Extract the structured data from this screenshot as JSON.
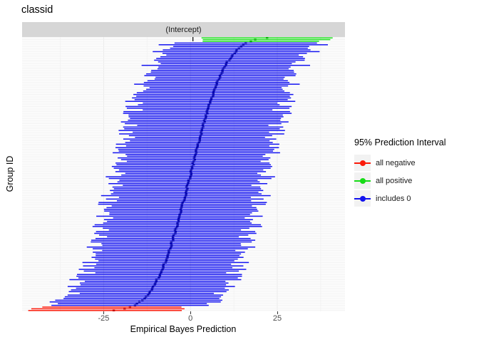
{
  "title": "classid",
  "facet_strip": "(Intercept)",
  "x_axis": {
    "label": "Empirical Bayes Prediction",
    "ticks": [
      "-25",
      "0",
      "25"
    ],
    "tick_values": [
      -25,
      0,
      25
    ]
  },
  "y_axis": {
    "label": "Group ID"
  },
  "legend": {
    "title": "95% Prediction Interval",
    "items": [
      {
        "label": "all negative",
        "color": "#fa1a0a",
        "dot_color": "#c40000"
      },
      {
        "label": "all positive",
        "color": "#17dc17",
        "dot_color": "#00b400"
      },
      {
        "label": "includes 0",
        "color": "#1111ee",
        "dot_color": "#0000b0"
      }
    ]
  },
  "chart_data": {
    "type": "errorbar-caterpillar",
    "orientation": "horizontal",
    "n_groups": 160,
    "groups_sorted_by": "estimate ascending, bottom to top",
    "estimate_mean": 0,
    "estimate_sd": 8,
    "estimate_jitter": 0.25,
    "interval_half_width": 21.5,
    "half_width_jitter": 3,
    "lower_tail_widening": 5,
    "n_all_negative": 3,
    "n_all_positive": 3,
    "xlim": [
      -48.5,
      44.5
    ],
    "value_clamp": [
      -47.5,
      42.5
    ],
    "x_major_gridlines": [
      -25,
      0,
      25
    ],
    "x_minor_gridlines": [
      -37.5,
      -12.5,
      12.5,
      37.5
    ],
    "zero_top_marker_value": 0.7,
    "colors": {
      "includes_0": "#1111ee",
      "includes_0_dot": "#0000b0",
      "all_negative": "#fa1a0a",
      "all_negative_dot": "#c40000",
      "all_positive": "#17dc17",
      "all_positive_dot": "#00b400",
      "h_gridline": "#f1f1f1",
      "major_v_gridline": "#e9e9e9",
      "minor_v_gridline": "#f4f4f4",
      "strip_fill": "#d6d6d6",
      "top_marker": "#111111"
    },
    "title": "classid",
    "xlabel": "Empirical Bayes Prediction",
    "ylabel": "Group ID"
  }
}
